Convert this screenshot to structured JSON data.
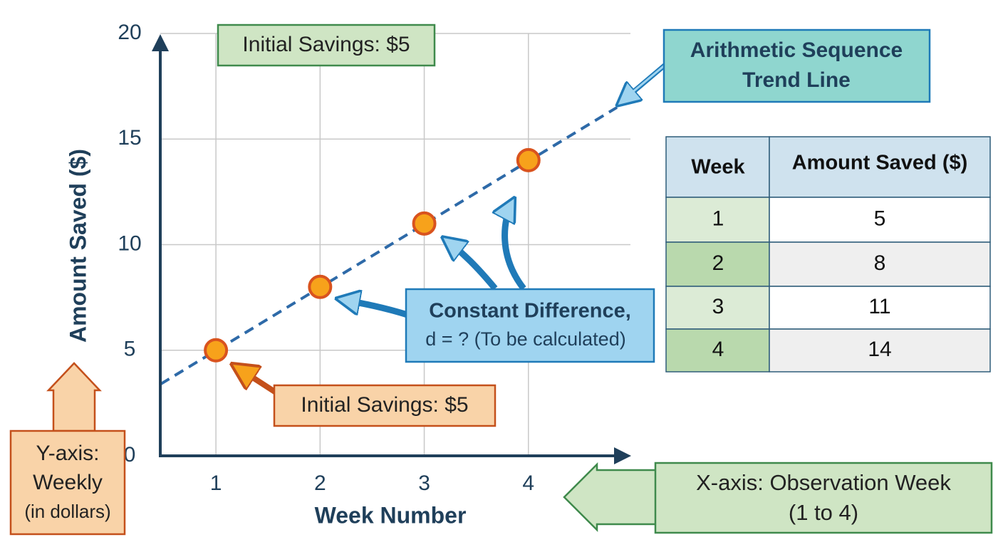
{
  "chart_data": {
    "type": "line",
    "x_label": "Week Number",
    "y_label": "Amount Saved ($)",
    "x": [
      1,
      2,
      3,
      4
    ],
    "series": [
      {
        "name": "Amount Saved ($)",
        "color": "#f7a21b",
        "values": [
          5,
          8,
          11,
          14
        ]
      }
    ],
    "trend_line": {
      "x": [
        0.47,
        4.85
      ],
      "values": [
        3.4,
        16.5
      ],
      "color": "#2e6aa8"
    },
    "xlim": [
      0.5,
      5
    ],
    "ylim": [
      0,
      20
    ],
    "xticks": [
      1,
      2,
      3,
      4
    ],
    "yticks": [
      0,
      5,
      10,
      15,
      20
    ],
    "grid": true,
    "annotations": {
      "initial_top": "Initial Savings: $5",
      "trend": [
        "Arithmetic Sequence",
        "Trend Line"
      ],
      "difference": [
        "Constant Difference,",
        "d = ? (To be calculated)"
      ],
      "initial_point": "Initial Savings: $5",
      "y_axis_note": [
        "Y-axis:",
        "Weekly",
        "(in dollars)"
      ],
      "x_axis_note": [
        "X-axis: Observation Week",
        "(1 to 4)"
      ]
    },
    "table": {
      "headers": [
        "Week",
        "Amount Saved ($)"
      ]
    }
  }
}
